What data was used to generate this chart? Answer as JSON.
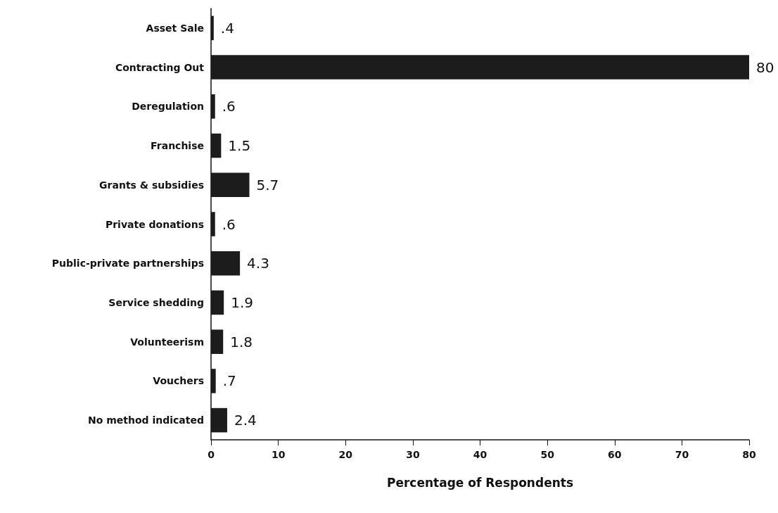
{
  "chart_data": {
    "type": "bar",
    "orientation": "horizontal",
    "xlabel": "Percentage of Respondents",
    "categories": [
      "Asset Sale",
      "Contracting Out",
      "Deregulation",
      "Franchise",
      "Grants & subsidies",
      "Private donations",
      "Public-private partnerships",
      "Service shedding",
      "Volunteerism",
      "Vouchers",
      "No method indicated"
    ],
    "values": [
      0.4,
      80,
      0.6,
      1.5,
      5.7,
      0.6,
      4.3,
      1.9,
      1.8,
      0.7,
      2.4
    ],
    "value_labels": [
      ".4",
      "80",
      ".6",
      "1.5",
      "5.7",
      ".6",
      "4.3",
      "1.9",
      "1.8",
      ".7",
      "2.4"
    ],
    "color": "#1c1c1c",
    "xlim": [
      0,
      80
    ],
    "xticks": [
      0,
      10,
      20,
      30,
      40,
      50,
      60,
      70,
      80
    ],
    "grid": false
  }
}
